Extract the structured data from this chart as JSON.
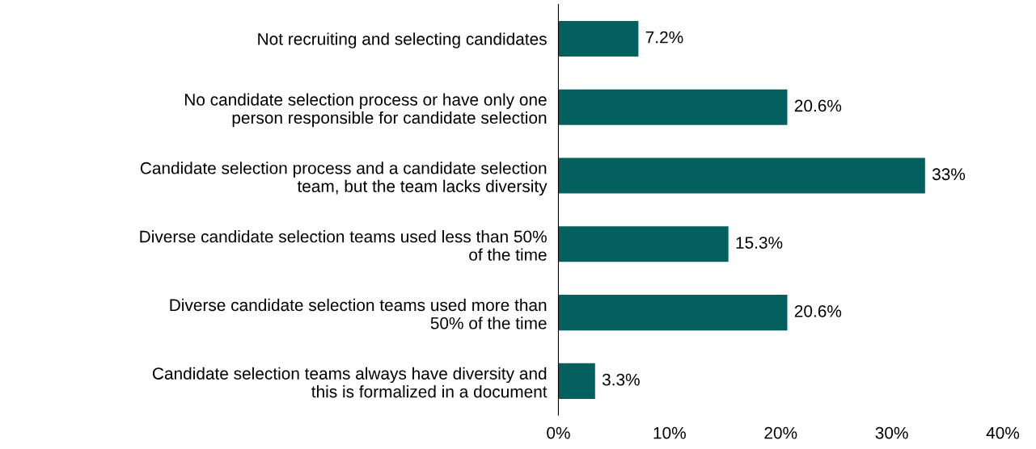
{
  "chart_data": {
    "type": "bar",
    "orientation": "horizontal",
    "categories": [
      "Not recruiting and selecting candidates",
      "No candidate selection process or have only one\nperson responsible for candidate selection",
      "Candidate selection process and a candidate selection\nteam, but the team lacks diversity",
      "Diverse candidate selection teams used less than 50%\nof the time",
      "Diverse candidate selection teams used more than\n50% of the time",
      "Candidate selection teams always have diversity and\nthis is formalized in a document"
    ],
    "values": [
      7.2,
      20.6,
      33,
      15.3,
      20.6,
      3.3
    ],
    "value_labels": [
      "7.2%",
      "20.6%",
      "33%",
      "15.3%",
      "20.6%",
      "3.3%"
    ],
    "color": "#04605f",
    "xlim": [
      0,
      40
    ],
    "xticks": [
      {
        "value": 0,
        "label": "0%"
      },
      {
        "value": 10,
        "label": "10%"
      },
      {
        "value": 20,
        "label": "20%"
      },
      {
        "value": 30,
        "label": "30%"
      },
      {
        "value": 40,
        "label": "40%"
      }
    ],
    "grid": false,
    "legend": false
  }
}
